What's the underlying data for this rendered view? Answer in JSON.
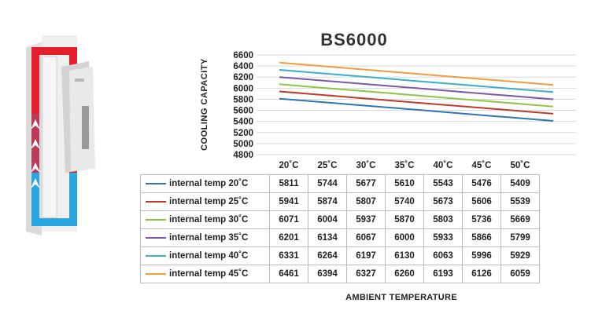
{
  "chart_data": {
    "type": "line",
    "title": "BS6000",
    "xlabel": "AMBIENT TEMPERATURE",
    "ylabel": "COOLING CAPACITY",
    "categories": [
      "20˚C",
      "25˚C",
      "30˚C",
      "35˚C",
      "40˚C",
      "45˚C",
      "50˚C"
    ],
    "ylim": [
      4800,
      6600
    ],
    "yticks": [
      4800,
      5000,
      5200,
      5400,
      5600,
      5800,
      6000,
      6200,
      6400,
      6600
    ],
    "grid": true,
    "legend": "table-below",
    "series": [
      {
        "name": "internal temp 20˚C",
        "color": "#2e75b6",
        "values": [
          5811,
          5744,
          5677,
          5610,
          5543,
          5476,
          5409
        ]
      },
      {
        "name": "internal temp 25˚C",
        "color": "#c0392b",
        "values": [
          5941,
          5874,
          5807,
          5740,
          5673,
          5606,
          5539
        ]
      },
      {
        "name": "internal temp 30˚C",
        "color": "#8dc63f",
        "values": [
          6071,
          6004,
          5937,
          5870,
          5803,
          5736,
          5669
        ]
      },
      {
        "name": "internal temp 35˚C",
        "color": "#7e57a8",
        "values": [
          6201,
          6134,
          6067,
          6000,
          5933,
          5866,
          5799
        ]
      },
      {
        "name": "internal temp 40˚C",
        "color": "#3ab0c8",
        "values": [
          6331,
          6264,
          6197,
          6130,
          6063,
          5996,
          5929
        ]
      },
      {
        "name": "internal temp 45˚C",
        "color": "#f39c3d",
        "values": [
          6461,
          6394,
          6327,
          6260,
          6193,
          6126,
          6059
        ]
      }
    ]
  }
}
